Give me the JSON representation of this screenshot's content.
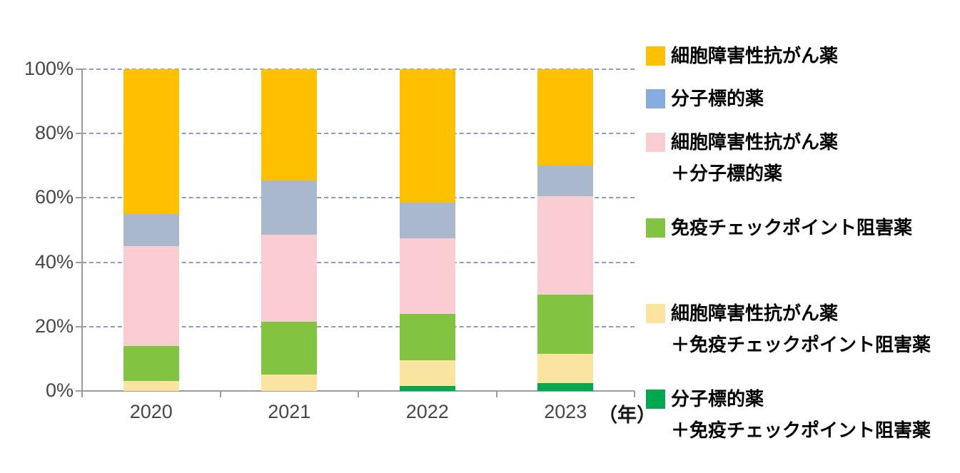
{
  "chart_data": {
    "type": "bar",
    "stacked": true,
    "percent": true,
    "title": "",
    "categories": [
      "2020",
      "2021",
      "2022",
      "2023"
    ],
    "axis_unit": "（年）",
    "ylim": [
      0,
      100
    ],
    "y_ticks": [
      0,
      20,
      40,
      60,
      80,
      100
    ],
    "y_tick_labels": [
      "0%",
      "20%",
      "40%",
      "60%",
      "80%",
      "100%"
    ],
    "grid": "horizontal dashed lines at each 20%",
    "legend_position": "right",
    "stack_order": "series listed top-to-bottom within each bar; bottom-up rendering is the reverse",
    "grid_color": "#8A9FC0",
    "axis_color": "#9C9C9C",
    "tick_label_color": "#474747",
    "series": [
      {
        "name": "細胞障害性抗がん薬",
        "legend_lines": [
          "細胞障害性抗がん薬"
        ],
        "color": "#FFC000",
        "values": [
          45,
          34.5,
          41.5,
          30
        ]
      },
      {
        "name": "分子標的薬",
        "legend_lines": [
          "分子標的薬"
        ],
        "color": "#85ACDC",
        "bar_color": "#A9B8CD",
        "values": [
          10,
          17,
          11,
          9.5
        ]
      },
      {
        "name": "細胞障害性抗がん薬＋分子標的薬",
        "legend_lines": [
          "細胞障害性抗がん薬",
          "＋分子標的薬"
        ],
        "color": "#FACDD2",
        "values": [
          31,
          27,
          23.5,
          30.5
        ]
      },
      {
        "name": "免疫チェックポイント阻害薬",
        "legend_lines": [
          "免疫チェックポイント阻害薬"
        ],
        "color": "#82C341",
        "values": [
          11,
          16.5,
          14.5,
          18.5
        ]
      },
      {
        "name": "細胞障害性抗がん薬＋免疫チェックポイント阻害薬",
        "legend_lines": [
          "細胞障害性抗がん薬",
          "＋免疫チェックポイント阻害薬"
        ],
        "color": "#FBE3A0",
        "values": [
          3,
          5,
          8,
          9
        ]
      },
      {
        "name": "分子標的薬＋免疫チェックポイント阻害薬",
        "legend_lines": [
          "分子標的薬",
          "＋免疫チェックポイント阻害薬"
        ],
        "color": "#00A94F",
        "values": [
          0,
          0,
          1.5,
          2.5
        ]
      }
    ]
  }
}
